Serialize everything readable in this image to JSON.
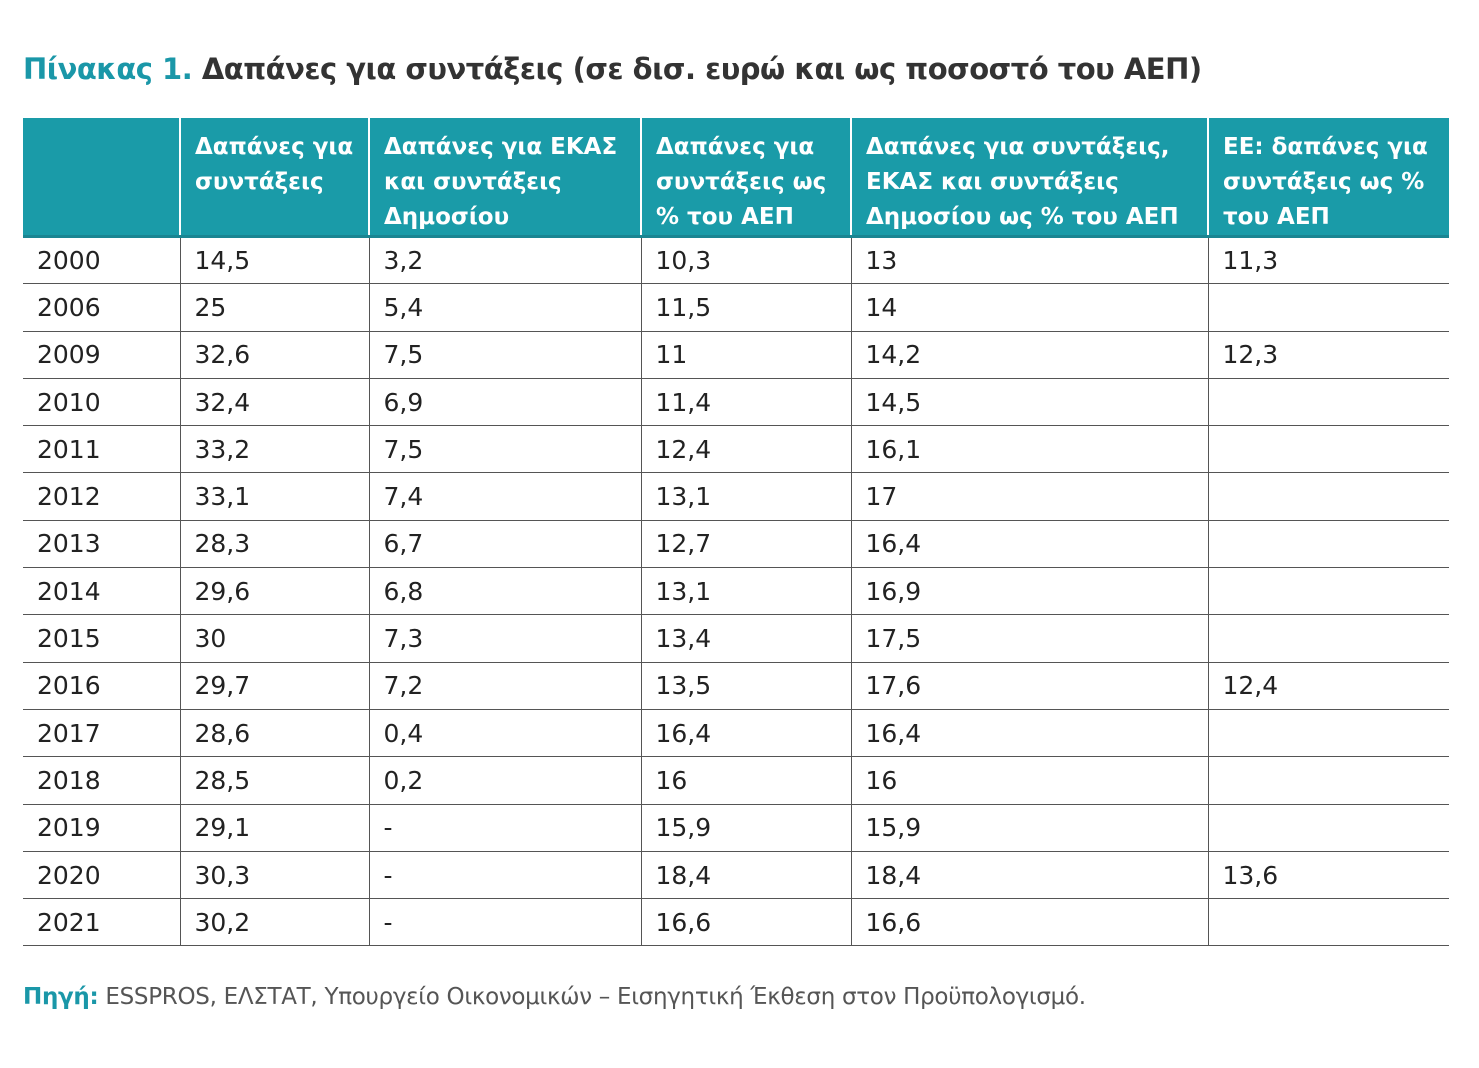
{
  "title": {
    "label": "Πίνακας 1.",
    "text": " Δαπάνες για συντάξεις (σε δισ. ευρώ και ως ποσοστό του ΑΕΠ)"
  },
  "table": {
    "headers": [
      "",
      "Δαπάνες για συντάξεις",
      "Δαπάνες για ΕΚΑΣ και συντάξεις Δημοσίου",
      "Δαπάνες για συντάξεις ως % του ΑΕΠ",
      "Δαπάνες για συντάξεις, ΕΚΑΣ και συντάξεις Δημοσίου ως % του ΑΕΠ",
      "ΕΕ: δαπάνες για συντάξεις ως % του ΑΕΠ"
    ],
    "rows": [
      [
        "2000",
        "14,5",
        "3,2",
        "10,3",
        "13",
        "11,3"
      ],
      [
        "2006",
        "25",
        "5,4",
        "11,5",
        "14",
        ""
      ],
      [
        "2009",
        "32,6",
        "7,5",
        "11",
        "14,2",
        "12,3"
      ],
      [
        "2010",
        "32,4",
        "6,9",
        "11,4",
        "14,5",
        ""
      ],
      [
        "2011",
        "33,2",
        "7,5",
        "12,4",
        "16,1",
        ""
      ],
      [
        "2012",
        "33,1",
        "7,4",
        "13,1",
        "17",
        ""
      ],
      [
        "2013",
        "28,3",
        "6,7",
        "12,7",
        "16,4",
        ""
      ],
      [
        "2014",
        "29,6",
        "6,8",
        "13,1",
        "16,9",
        ""
      ],
      [
        "2015",
        "30",
        "7,3",
        "13,4",
        "17,5",
        ""
      ],
      [
        "2016",
        "29,7",
        "7,2",
        "13,5",
        "17,6",
        "12,4"
      ],
      [
        "2017",
        "28,6",
        "0,4",
        "16,4",
        "16,4",
        ""
      ],
      [
        "2018",
        "28,5",
        "0,2",
        "16",
        "16",
        ""
      ],
      [
        "2019",
        "29,1",
        "-",
        "15,9",
        "15,9",
        ""
      ],
      [
        "2020",
        "30,3",
        "-",
        "18,4",
        "18,4",
        "13,6"
      ],
      [
        "2021",
        "30,2",
        "-",
        "16,6",
        "16,6",
        ""
      ]
    ]
  },
  "source": {
    "label": "Πηγή:",
    "text": " ESSPROS, ΕΛΣΤΑΤ, Υπουργείο Οικονομικών – Εισηγητική Έκθεση στον Προϋπολογισμό."
  }
}
